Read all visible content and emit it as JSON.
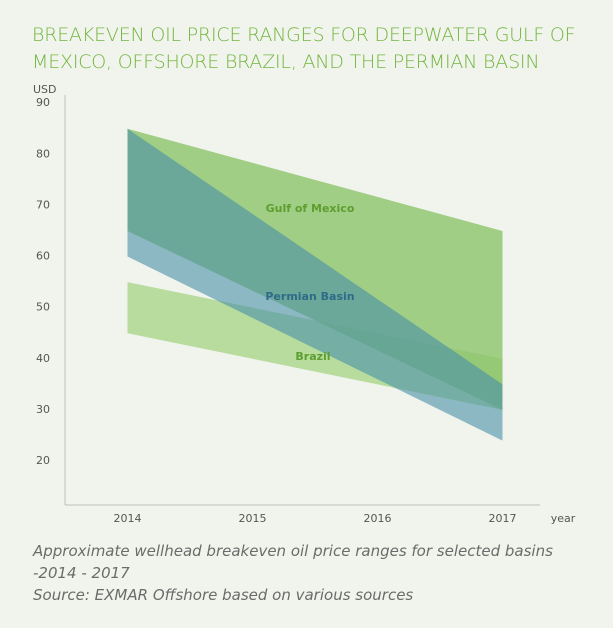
{
  "chart_data": {
    "type": "area-range",
    "title": "BREAKEVEN OIL PRICE RANGES FOR DEEPWATER GULF OF MEXICO, OFFSHORE BRAZIL, AND THE PERMIAN BASIN",
    "y_label": "USD",
    "x_label": "year",
    "x": [
      2014,
      2017
    ],
    "series": [
      {
        "name": "Brazil",
        "color": "#a9d68b",
        "label_color": "#5e9e30",
        "upper": [
          55,
          40
        ],
        "lower": [
          45,
          30
        ]
      },
      {
        "name": "Gulf of Mexico",
        "color": "#8cc46b",
        "label_color": "#5e9e30",
        "upper": [
          85,
          65
        ],
        "lower": [
          65,
          30
        ]
      },
      {
        "name": "Permian Basin",
        "color": "#4a8fa8",
        "label_color": "#2d6b88",
        "upper": [
          85,
          35
        ],
        "lower": [
          60,
          24
        ]
      }
    ],
    "xlim": [
      2013.5,
      2017.3
    ],
    "xticks": [
      2014,
      2015,
      2016,
      2017
    ],
    "ylim": [
      11.4,
      91.6
    ],
    "yticks": [
      20,
      30,
      40,
      50,
      60,
      70,
      80,
      90
    ],
    "caption": "Approximate wellhead breakeven oil price ranges for selected basins -2014 - 2017",
    "source": "Source: EXMAR Offshore based on various sources"
  }
}
